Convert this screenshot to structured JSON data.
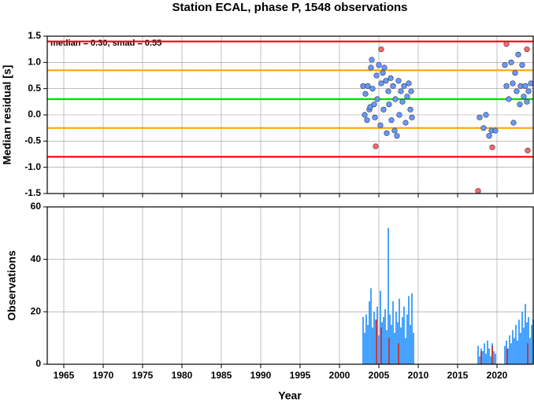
{
  "chart_data": [
    {
      "type": "scatter",
      "title": "Station ECAL, phase P, 1548 observations",
      "ylabel": "Median residual [s]",
      "annotation": "median = 0.30, smad = 0.55",
      "xlim": [
        1962.9,
        2024.6
      ],
      "ylim": [
        -1.5,
        1.5
      ],
      "yticks": [
        1.5,
        {
          "value": 1,
          "label": "1.0"
        },
        0.5,
        {
          "value": 0,
          "label": "0.0"
        },
        -0.5,
        {
          "value": -1,
          "label": "-1.0"
        },
        -1.5
      ],
      "grid": true,
      "reference_lines": [
        {
          "value": 1.4,
          "color": "#ff0000"
        },
        {
          "value": 0.85,
          "color": "#ffa500"
        },
        {
          "value": 0.3,
          "color": "#00e000"
        },
        {
          "value": -0.25,
          "color": "#ffa500"
        },
        {
          "value": -0.8,
          "color": "#ff0000"
        }
      ],
      "series": [
        {
          "color": "#6699ff",
          "x": [
            2003.0,
            2003.2,
            2003.3,
            2003.5,
            2003.6,
            2003.8,
            2003.9,
            2004.0,
            2004.1,
            2004.2,
            2004.4,
            2004.5,
            2004.7,
            2004.8,
            2005.0,
            2005.2,
            2005.3,
            2005.5,
            2005.6,
            2005.7,
            2005.9,
            2006.0,
            2006.2,
            2006.3,
            2006.5,
            2006.6,
            2006.8,
            2007.0,
            2007.1,
            2007.3,
            2007.5,
            2007.6,
            2007.8,
            2008.0,
            2008.2,
            2008.4,
            2008.6,
            2008.8,
            2009.0,
            2009.1,
            2009.2,
            2017.8,
            2018.3,
            2018.6,
            2019.0,
            2019.3,
            2019.8,
            2021.0,
            2021.2,
            2021.5,
            2021.8,
            2022.0,
            2022.1,
            2022.3,
            2022.5,
            2022.7,
            2022.9,
            2023.0,
            2023.2,
            2023.4,
            2023.6,
            2023.8,
            2024.0,
            2024.3
          ],
          "values": [
            0.55,
            0.0,
            0.4,
            -0.1,
            0.55,
            0.1,
            0.15,
            0.9,
            1.05,
            0.5,
            0.2,
            -0.05,
            0.75,
            0.3,
            0.95,
            -0.2,
            0.6,
            0.8,
            0.1,
            0.9,
            0.65,
            -0.35,
            0.45,
            0.2,
            0.7,
            -0.1,
            0.55,
            -0.3,
            0.3,
            -0.4,
            0.65,
            0.0,
            0.45,
            0.25,
            0.55,
            -0.15,
            0.35,
            0.6,
            0.1,
            0.45,
            -0.05,
            -0.05,
            -0.25,
            0.0,
            -0.4,
            -0.3,
            -0.3,
            0.95,
            0.55,
            0.3,
            1.0,
            0.6,
            -0.15,
            0.8,
            0.45,
            1.15,
            0.2,
            0.55,
            0.95,
            0.35,
            0.55,
            0.25,
            0.45,
            0.6
          ]
        },
        {
          "color": "#ff6666",
          "x": [
            2004.6,
            2005.3,
            2017.6,
            2019.4,
            2021.2,
            2023.8,
            2023.9
          ],
          "values": [
            -0.6,
            1.25,
            -1.45,
            -0.62,
            1.35,
            1.25,
            -0.68
          ]
        }
      ]
    },
    {
      "type": "bar",
      "xlabel": "Year",
      "ylabel": "Observations",
      "xlim": [
        1962.9,
        2024.6
      ],
      "ylim": [
        0,
        60
      ],
      "yticks": [
        0,
        20,
        40,
        60
      ],
      "xticks": [
        1965,
        1970,
        1975,
        1980,
        1985,
        1990,
        1995,
        2000,
        2005,
        2010,
        2015,
        2020
      ],
      "grid": true,
      "series": [
        {
          "color": "#3399ff",
          "x": [
            2003.0,
            2003.2,
            2003.4,
            2003.6,
            2003.8,
            2004.0,
            2004.2,
            2004.4,
            2004.6,
            2004.8,
            2005.0,
            2005.2,
            2005.4,
            2005.6,
            2005.8,
            2006.0,
            2006.2,
            2006.4,
            2006.6,
            2006.8,
            2007.0,
            2007.2,
            2007.4,
            2007.6,
            2007.8,
            2008.0,
            2008.2,
            2008.4,
            2008.6,
            2008.8,
            2009.0,
            2009.2,
            2009.4,
            2017.6,
            2017.8,
            2018.0,
            2018.2,
            2018.4,
            2018.6,
            2018.8,
            2019.0,
            2019.2,
            2019.4,
            2019.6,
            2019.8,
            2021.0,
            2021.2,
            2021.4,
            2021.6,
            2021.8,
            2022.0,
            2022.2,
            2022.4,
            2022.6,
            2022.8,
            2023.0,
            2023.2,
            2023.4,
            2023.6,
            2023.8,
            2024.0,
            2024.2,
            2024.4,
            2024.6
          ],
          "values": [
            18,
            12,
            19,
            15,
            24,
            29,
            14,
            20,
            17,
            22,
            11,
            28,
            16,
            18,
            21,
            13,
            52,
            19,
            15,
            24,
            12,
            20,
            16,
            25,
            14,
            18,
            22,
            10,
            19,
            26,
            15,
            27,
            12,
            7,
            3,
            6,
            5,
            8,
            4,
            9,
            6,
            3,
            8,
            5,
            4,
            7,
            9,
            6,
            11,
            8,
            13,
            10,
            15,
            9,
            17,
            12,
            20,
            14,
            23,
            16,
            18,
            10,
            15,
            17
          ]
        },
        {
          "color": "#cc3333",
          "x": [
            2004.7,
            2005.3,
            2006.3,
            2007.5,
            2018.0,
            2019.4,
            2021.3,
            2023.9
          ],
          "values": [
            17,
            14,
            10,
            8,
            5,
            7,
            6,
            8
          ]
        }
      ]
    }
  ]
}
